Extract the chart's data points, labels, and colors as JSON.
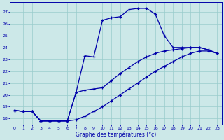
{
  "xlabel": "Graphe des températures (°c)",
  "background_color": "#cce8e8",
  "grid_color": "#99cccc",
  "line_color": "#0000aa",
  "xlim": [
    -0.5,
    23.5
  ],
  "ylim": [
    17.5,
    27.8
  ],
  "yticks": [
    18,
    19,
    20,
    21,
    22,
    23,
    24,
    25,
    26,
    27
  ],
  "xticks": [
    0,
    1,
    2,
    3,
    4,
    5,
    6,
    7,
    8,
    9,
    10,
    11,
    12,
    13,
    14,
    15,
    16,
    17,
    18,
    19,
    20,
    21,
    22,
    23
  ],
  "line1_x": [
    0,
    1,
    2,
    3,
    4,
    5,
    6,
    7,
    8,
    9,
    10,
    11,
    12,
    13,
    14,
    15,
    16,
    17,
    18,
    19,
    20,
    21,
    22,
    23
  ],
  "line1_y": [
    18.7,
    18.6,
    18.6,
    17.8,
    17.8,
    17.8,
    17.8,
    20.2,
    23.3,
    23.2,
    26.3,
    26.5,
    26.6,
    27.2,
    27.3,
    27.3,
    26.8,
    25.0,
    24.0,
    24.0,
    24.0,
    24.0,
    23.8,
    23.5
  ],
  "line2_x": [
    0,
    1,
    2,
    3,
    4,
    5,
    6,
    7,
    8,
    9,
    10,
    11,
    12,
    13,
    14,
    15,
    16,
    17,
    18,
    19,
    20,
    21,
    22,
    23
  ],
  "line2_y": [
    18.7,
    18.6,
    18.6,
    17.8,
    17.8,
    17.8,
    17.8,
    20.2,
    20.4,
    20.5,
    20.6,
    21.2,
    21.8,
    22.3,
    22.8,
    23.2,
    23.5,
    23.7,
    23.8,
    23.9,
    24.0,
    24.0,
    23.8,
    23.5
  ],
  "line3_x": [
    0,
    1,
    2,
    3,
    4,
    5,
    6,
    7,
    8,
    9,
    10,
    11,
    12,
    13,
    14,
    15,
    16,
    17,
    18,
    19,
    20,
    21,
    22,
    23
  ],
  "line3_y": [
    18.7,
    18.6,
    18.6,
    17.8,
    17.8,
    17.8,
    17.8,
    17.9,
    18.2,
    18.6,
    19.0,
    19.5,
    20.0,
    20.5,
    21.0,
    21.5,
    22.0,
    22.4,
    22.8,
    23.2,
    23.5,
    23.7,
    23.7,
    23.5
  ]
}
